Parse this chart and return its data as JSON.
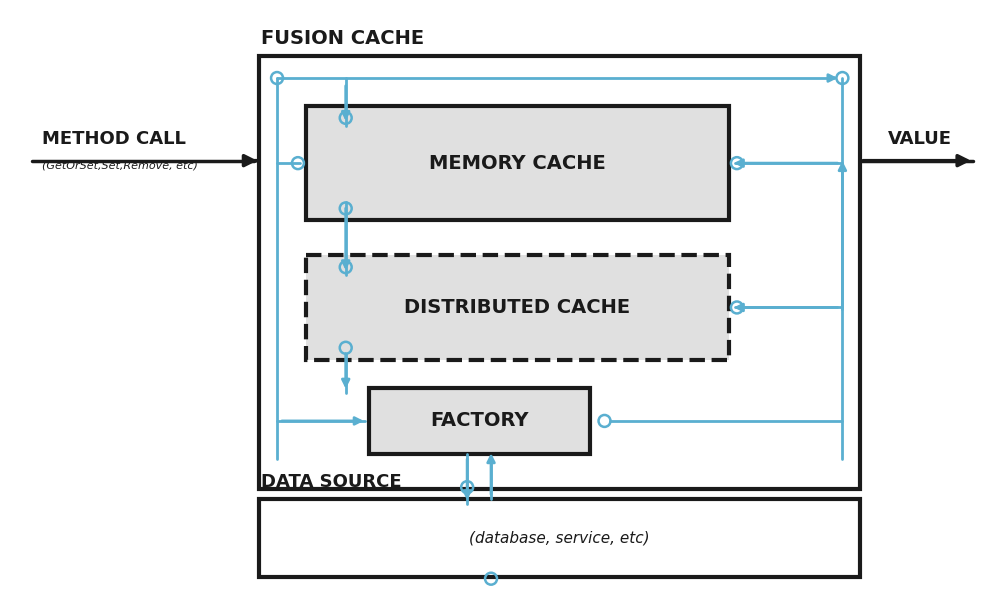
{
  "bg_color": "#ffffff",
  "line_color": "#1a1a1a",
  "blue_color": "#5aafd0",
  "gray_fill": "#e0e0e0",
  "title": "FUSION CACHE",
  "method_call_label": "METHOD CALL",
  "method_call_sub": "(GetOrSet,Set,Remove, etc)",
  "value_label": "VALUE",
  "memory_cache_label": "MEMORY CACHE",
  "dist_cache_label": "DISTRIBUTED CACHE",
  "factory_label": "FACTORY",
  "data_source_label": "DATA SOURCE",
  "ds_sub": "(database, service, etc)"
}
